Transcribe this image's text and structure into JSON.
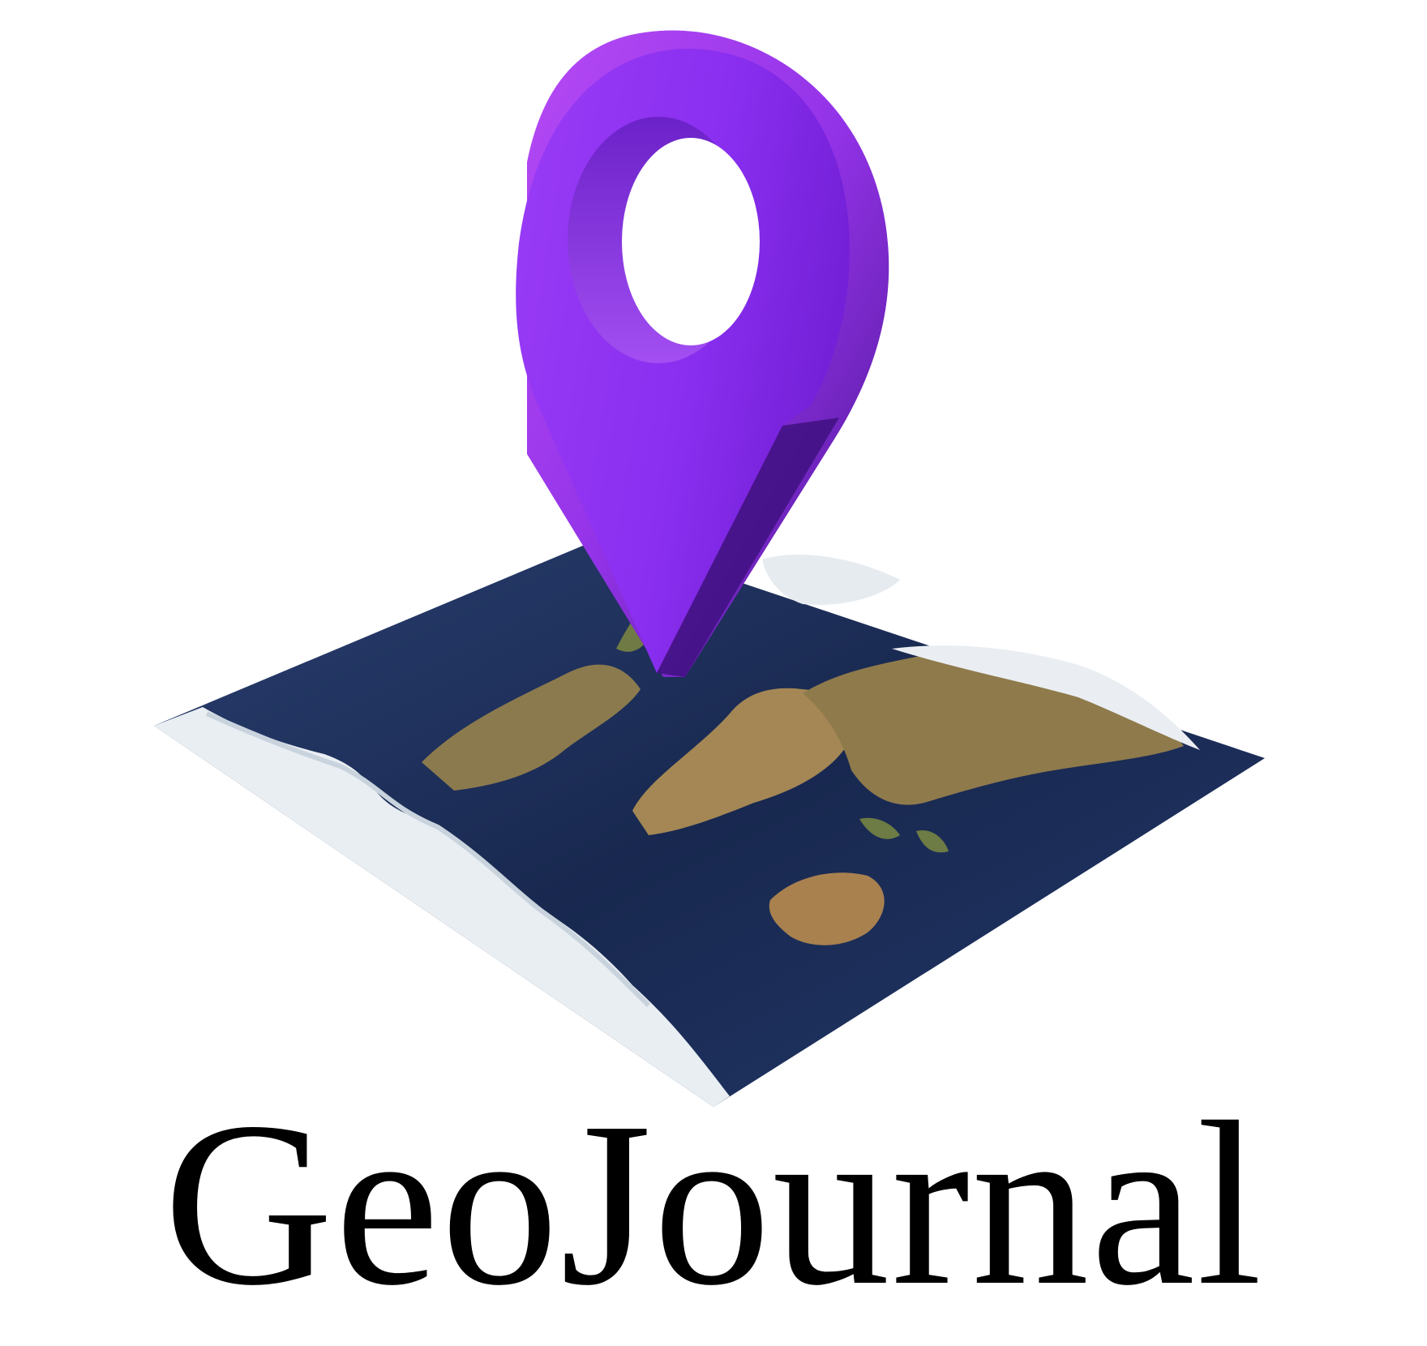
{
  "logo": {
    "wordmark": "GeoJournal",
    "icon": "location-pin-on-world-map-icon",
    "colors": {
      "pin": "#8f35f0",
      "pin_dark": "#5a1aa8",
      "ocean": "#1c2f5c",
      "land": "#9c8255",
      "ice": "#e9eef3",
      "text": "#000000"
    }
  }
}
